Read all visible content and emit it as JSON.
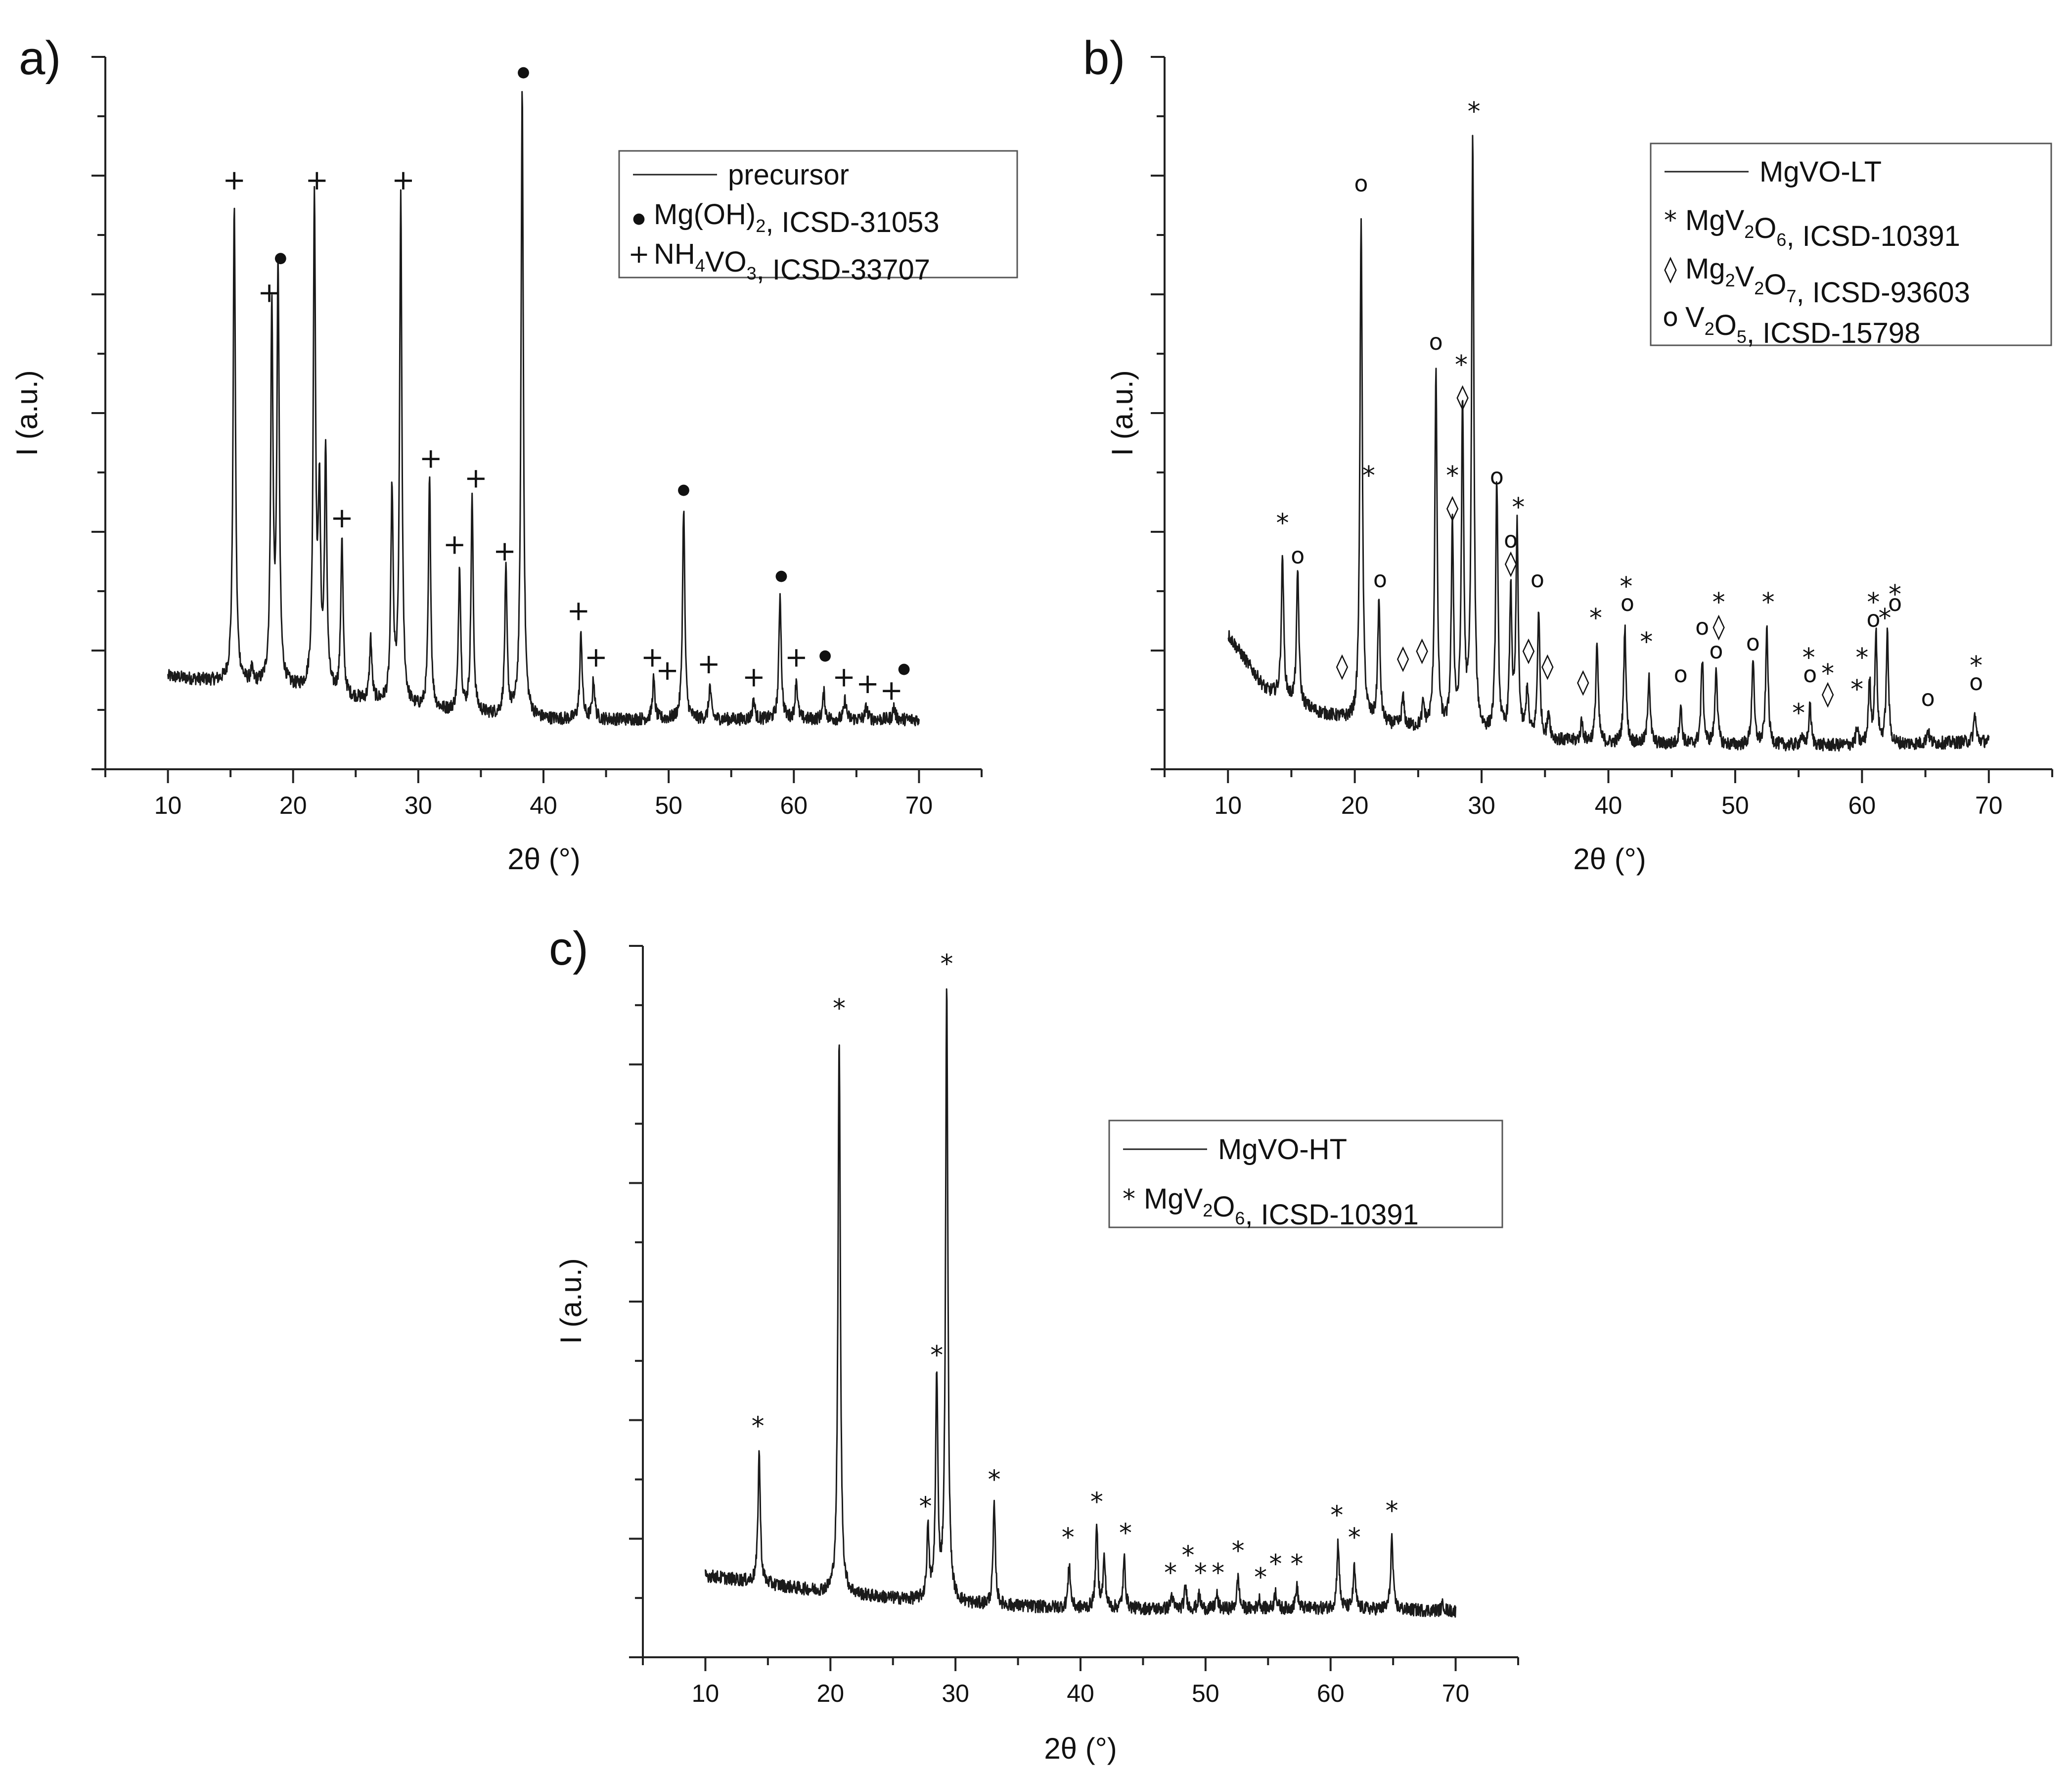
{
  "chart_data": [
    {
      "panel": "a)",
      "type": "line",
      "xlabel": "2θ (°)",
      "ylabel": "I (a.u.)",
      "xlim": [
        5,
        75
      ],
      "ylim": [
        -0.45,
        10.3
      ],
      "xticks": [
        10,
        20,
        30,
        40,
        50,
        60,
        70
      ],
      "yticks_labeled": false,
      "series": [
        {
          "name": "precursor",
          "x_range": [
            10,
            70
          ],
          "baseline": [
            [
              10,
              0.95
            ],
            [
              20,
              0.75
            ],
            [
              30,
              0.45
            ],
            [
              40,
              0.3
            ],
            [
              50,
              0.3
            ],
            [
              60,
              0.3
            ],
            [
              70,
              0.3
            ]
          ],
          "peaks": [
            [
              15.3,
              8.1
            ],
            [
              16.7,
              1.0
            ],
            [
              18.3,
              6.4
            ],
            [
              18.8,
              7.0
            ],
            [
              21.7,
              8.1
            ],
            [
              22.1,
              3.5
            ],
            [
              22.6,
              4.2
            ],
            [
              23.9,
              3.0
            ],
            [
              26.2,
              1.5
            ],
            [
              27.9,
              3.7
            ],
            [
              28.6,
              8.1
            ],
            [
              30.9,
              3.9
            ],
            [
              33.3,
              2.6
            ],
            [
              34.3,
              3.6
            ],
            [
              37.0,
              2.5
            ],
            [
              38.3,
              9.8
            ],
            [
              43.0,
              1.6
            ],
            [
              44.0,
              0.9
            ],
            [
              48.8,
              0.9
            ],
            [
              51.2,
              3.5
            ],
            [
              53.3,
              0.8
            ],
            [
              56.8,
              0.6
            ],
            [
              58.9,
              2.2
            ],
            [
              60.2,
              0.9
            ],
            [
              62.4,
              0.7
            ],
            [
              64.1,
              0.6
            ],
            [
              65.8,
              0.5
            ],
            [
              68.0,
              0.5
            ]
          ]
        }
      ],
      "markers": [
        {
          "symbol": "+",
          "x": 15.3,
          "y": 8.3
        },
        {
          "symbol": "+",
          "x": 18.1,
          "y": 6.6
        },
        {
          "symbol": "●",
          "x": 19.0,
          "y": 7.2
        },
        {
          "symbol": "+",
          "x": 21.9,
          "y": 8.3
        },
        {
          "symbol": "+",
          "x": 23.9,
          "y": 3.2
        },
        {
          "symbol": "+",
          "x": 28.8,
          "y": 8.3
        },
        {
          "symbol": "+",
          "x": 31.0,
          "y": 4.1
        },
        {
          "symbol": "+",
          "x": 32.9,
          "y": 2.8
        },
        {
          "symbol": "+",
          "x": 34.6,
          "y": 3.8
        },
        {
          "symbol": "+",
          "x": 36.9,
          "y": 2.7
        },
        {
          "symbol": "●",
          "x": 38.4,
          "y": 10.0
        },
        {
          "symbol": "+",
          "x": 42.8,
          "y": 1.8
        },
        {
          "symbol": "+",
          "x": 44.2,
          "y": 1.1
        },
        {
          "symbol": "+",
          "x": 48.7,
          "y": 1.1
        },
        {
          "symbol": "+",
          "x": 49.9,
          "y": 0.9
        },
        {
          "symbol": "●",
          "x": 51.2,
          "y": 3.7
        },
        {
          "symbol": "+",
          "x": 53.2,
          "y": 1.0
        },
        {
          "symbol": "+",
          "x": 56.8,
          "y": 0.8
        },
        {
          "symbol": "●",
          "x": 59.0,
          "y": 2.4
        },
        {
          "symbol": "+",
          "x": 60.2,
          "y": 1.1
        },
        {
          "symbol": "●",
          "x": 62.5,
          "y": 1.2
        },
        {
          "symbol": "+",
          "x": 64.0,
          "y": 0.8
        },
        {
          "symbol": "+",
          "x": 65.9,
          "y": 0.7
        },
        {
          "symbol": "+",
          "x": 67.8,
          "y": 0.6
        },
        {
          "symbol": "●",
          "x": 68.8,
          "y": 1.0
        }
      ],
      "legend": {
        "placement": "top-right",
        "entries": [
          {
            "symbol": "line",
            "label": "precursor",
            "sub": []
          },
          {
            "symbol": "●",
            "label": "Mg(OH)_2, ICSD-31053"
          },
          {
            "symbol": "+",
            "label": "NH_4VO_3, ICSD-33707"
          }
        ]
      }
    },
    {
      "panel": "b)",
      "type": "line",
      "xlabel": "2θ (°)",
      "ylabel": "I (a.u.)",
      "xlim": [
        5,
        75
      ],
      "ylim": [
        0,
        9.0
      ],
      "xticks": [
        10,
        20,
        30,
        40,
        50,
        60,
        70
      ],
      "yticks_labeled": false,
      "series": [
        {
          "name": "MgVO-LT",
          "x_range": [
            10,
            70
          ],
          "baseline": [
            [
              10,
              1.7
            ],
            [
              13,
              1.0
            ],
            [
              17,
              0.72
            ],
            [
              20,
              0.6
            ],
            [
              30,
              0.42
            ],
            [
              40,
              0.32
            ],
            [
              50,
              0.3
            ],
            [
              60,
              0.3
            ],
            [
              70,
              0.35
            ]
          ],
          "peaks": [
            [
              14.3,
              2.7
            ],
            [
              15.5,
              2.5
            ],
            [
              20.5,
              7.0
            ],
            [
              21.9,
              2.1
            ],
            [
              23.8,
              0.9
            ],
            [
              25.4,
              0.8
            ],
            [
              26.4,
              5.0
            ],
            [
              27.7,
              3.0
            ],
            [
              28.5,
              4.5
            ],
            [
              29.3,
              7.9
            ],
            [
              31.2,
              3.6
            ],
            [
              32.3,
              2.2
            ],
            [
              32.8,
              3.0
            ],
            [
              33.6,
              1.0
            ],
            [
              34.5,
              2.0
            ],
            [
              35.3,
              0.7
            ],
            [
              37.9,
              0.6
            ],
            [
              39.1,
              1.6
            ],
            [
              41.3,
              1.8
            ],
            [
              43.2,
              1.2
            ],
            [
              45.7,
              0.8
            ],
            [
              47.4,
              1.4
            ],
            [
              48.5,
              1.3
            ],
            [
              51.4,
              1.4
            ],
            [
              52.5,
              1.8
            ],
            [
              55.2,
              0.4
            ],
            [
              55.9,
              0.8
            ],
            [
              59.6,
              0.5
            ],
            [
              60.6,
              1.1
            ],
            [
              61.1,
              1.7
            ],
            [
              62.0,
              1.7
            ],
            [
              65.2,
              0.5
            ],
            [
              68.9,
              0.7
            ]
          ]
        }
      ],
      "markers": [
        {
          "symbol": "*",
          "x": 29.4,
          "y": 8.2
        },
        {
          "symbol": "o",
          "x": 20.5,
          "y": 7.3
        },
        {
          "symbol": "o",
          "x": 26.4,
          "y": 5.3
        },
        {
          "symbol": "*",
          "x": 28.4,
          "y": 5.0
        },
        {
          "symbol": "◊",
          "x": 28.5,
          "y": 4.6
        },
        {
          "symbol": "*",
          "x": 21.1,
          "y": 3.6
        },
        {
          "symbol": "*",
          "x": 27.7,
          "y": 3.6
        },
        {
          "symbol": "◊",
          "x": 27.7,
          "y": 3.2
        },
        {
          "symbol": "o",
          "x": 31.2,
          "y": 3.6
        },
        {
          "symbol": "*",
          "x": 32.9,
          "y": 3.2
        },
        {
          "symbol": "o",
          "x": 32.3,
          "y": 2.8
        },
        {
          "symbol": "◊",
          "x": 32.3,
          "y": 2.5
        },
        {
          "symbol": "*",
          "x": 14.3,
          "y": 3.0
        },
        {
          "symbol": "o",
          "x": 15.5,
          "y": 2.6
        },
        {
          "symbol": "o",
          "x": 22.0,
          "y": 2.3
        },
        {
          "symbol": "o",
          "x": 34.4,
          "y": 2.3
        },
        {
          "symbol": "◊",
          "x": 19.0,
          "y": 1.2
        },
        {
          "symbol": "◊",
          "x": 23.8,
          "y": 1.3
        },
        {
          "symbol": "◊",
          "x": 25.3,
          "y": 1.4
        },
        {
          "symbol": "◊",
          "x": 33.7,
          "y": 1.4
        },
        {
          "symbol": "◊",
          "x": 35.2,
          "y": 1.2
        },
        {
          "symbol": "◊",
          "x": 38.0,
          "y": 1.0
        },
        {
          "symbol": "*",
          "x": 39.0,
          "y": 1.8
        },
        {
          "symbol": "*",
          "x": 41.4,
          "y": 2.2
        },
        {
          "symbol": "o",
          "x": 41.5,
          "y": 2.0
        },
        {
          "symbol": "*",
          "x": 43.0,
          "y": 1.5
        },
        {
          "symbol": "o",
          "x": 45.7,
          "y": 1.1
        },
        {
          "symbol": "o",
          "x": 47.4,
          "y": 1.7
        },
        {
          "symbol": "*",
          "x": 48.7,
          "y": 2.0
        },
        {
          "symbol": "◊",
          "x": 48.7,
          "y": 1.7
        },
        {
          "symbol": "o",
          "x": 48.5,
          "y": 1.4
        },
        {
          "symbol": "o",
          "x": 51.4,
          "y": 1.5
        },
        {
          "symbol": "*",
          "x": 52.6,
          "y": 2.0
        },
        {
          "symbol": "*",
          "x": 55.0,
          "y": 0.6
        },
        {
          "symbol": "*",
          "x": 55.8,
          "y": 1.3
        },
        {
          "symbol": "o",
          "x": 55.9,
          "y": 1.1
        },
        {
          "symbol": "◊",
          "x": 57.3,
          "y": 0.85
        },
        {
          "symbol": "*",
          "x": 57.3,
          "y": 1.1
        },
        {
          "symbol": "*",
          "x": 59.6,
          "y": 0.9
        },
        {
          "symbol": "*",
          "x": 60.0,
          "y": 1.3
        },
        {
          "symbol": "*",
          "x": 60.9,
          "y": 2.0
        },
        {
          "symbol": "o",
          "x": 60.9,
          "y": 1.8
        },
        {
          "symbol": "*",
          "x": 61.8,
          "y": 1.8
        },
        {
          "symbol": "*",
          "x": 62.6,
          "y": 2.1
        },
        {
          "symbol": "o",
          "x": 62.6,
          "y": 2.0
        },
        {
          "symbol": "o",
          "x": 65.2,
          "y": 0.8
        },
        {
          "symbol": "*",
          "x": 69.0,
          "y": 1.2
        },
        {
          "symbol": "o",
          "x": 69.0,
          "y": 1.0
        }
      ],
      "legend": {
        "placement": "top-right",
        "entries": [
          {
            "symbol": "line",
            "label": "MgVO-LT"
          },
          {
            "symbol": "*",
            "label": "MgV_2O_6, ICSD-10391"
          },
          {
            "symbol": "◊",
            "label": "Mg_2V_2O_7, ICSD-93603"
          },
          {
            "symbol": "o",
            "label": "V_2O_5, ICSD-15798"
          }
        ]
      }
    },
    {
      "panel": "c)",
      "type": "line",
      "xlabel": "2θ (°)",
      "ylabel": "I (a.u.)",
      "xlim": [
        5,
        75
      ],
      "ylim": [
        -0.5,
        7.5
      ],
      "xticks": [
        10,
        20,
        30,
        40,
        50,
        60,
        70
      ],
      "yticks_labeled": false,
      "series": [
        {
          "name": "MgVO-HT",
          "x_range": [
            10,
            70
          ],
          "baseline": [
            [
              10,
              0.42
            ],
            [
              20,
              0.22
            ],
            [
              30,
              0.1
            ],
            [
              40,
              0.05
            ],
            [
              50,
              0.04
            ],
            [
              60,
              0.05
            ],
            [
              70,
              0.02
            ]
          ],
          "peaks": [
            [
              14.3,
              1.8
            ],
            [
              20.7,
              6.5
            ],
            [
              27.8,
              0.9
            ],
            [
              28.5,
              2.6
            ],
            [
              29.3,
              7.0
            ],
            [
              33.1,
              1.2
            ],
            [
              39.1,
              0.55
            ],
            [
              41.3,
              0.95
            ],
            [
              41.9,
              0.6
            ],
            [
              43.5,
              0.6
            ],
            [
              47.3,
              0.2
            ],
            [
              48.4,
              0.3
            ],
            [
              49.5,
              0.2
            ],
            [
              50.9,
              0.2
            ],
            [
              52.6,
              0.4
            ],
            [
              54.3,
              0.15
            ],
            [
              55.6,
              0.25
            ],
            [
              57.3,
              0.3
            ],
            [
              60.6,
              0.8
            ],
            [
              61.9,
              0.5
            ],
            [
              64.9,
              0.85
            ],
            [
              69.0,
              0.1
            ]
          ]
        }
      ],
      "markers": [
        {
          "symbol": "*",
          "x": 14.2,
          "y": 2.0
        },
        {
          "symbol": "*",
          "x": 20.7,
          "y": 6.7
        },
        {
          "symbol": "*",
          "x": 27.6,
          "y": 1.1
        },
        {
          "symbol": "*",
          "x": 28.5,
          "y": 2.8
        },
        {
          "symbol": "*",
          "x": 29.3,
          "y": 7.2
        },
        {
          "symbol": "*",
          "x": 33.1,
          "y": 1.4
        },
        {
          "symbol": "*",
          "x": 39.0,
          "y": 0.75
        },
        {
          "symbol": "*",
          "x": 41.3,
          "y": 1.15
        },
        {
          "symbol": "*",
          "x": 43.6,
          "y": 0.8
        },
        {
          "symbol": "*",
          "x": 47.2,
          "y": 0.35
        },
        {
          "symbol": "*",
          "x": 48.6,
          "y": 0.55
        },
        {
          "symbol": "*",
          "x": 49.6,
          "y": 0.35
        },
        {
          "symbol": "*",
          "x": 51.0,
          "y": 0.35
        },
        {
          "symbol": "*",
          "x": 52.6,
          "y": 0.6
        },
        {
          "symbol": "*",
          "x": 54.4,
          "y": 0.3
        },
        {
          "symbol": "*",
          "x": 55.6,
          "y": 0.45
        },
        {
          "symbol": "*",
          "x": 57.3,
          "y": 0.45
        },
        {
          "symbol": "*",
          "x": 60.5,
          "y": 1.0
        },
        {
          "symbol": "*",
          "x": 61.9,
          "y": 0.75
        },
        {
          "symbol": "*",
          "x": 64.9,
          "y": 1.05
        }
      ],
      "legend": {
        "placement": "top-right",
        "entries": [
          {
            "symbol": "line",
            "label": "MgVO-HT"
          },
          {
            "symbol": "*",
            "label": "MgV_2O_6, ICSD-10391"
          }
        ]
      }
    }
  ]
}
